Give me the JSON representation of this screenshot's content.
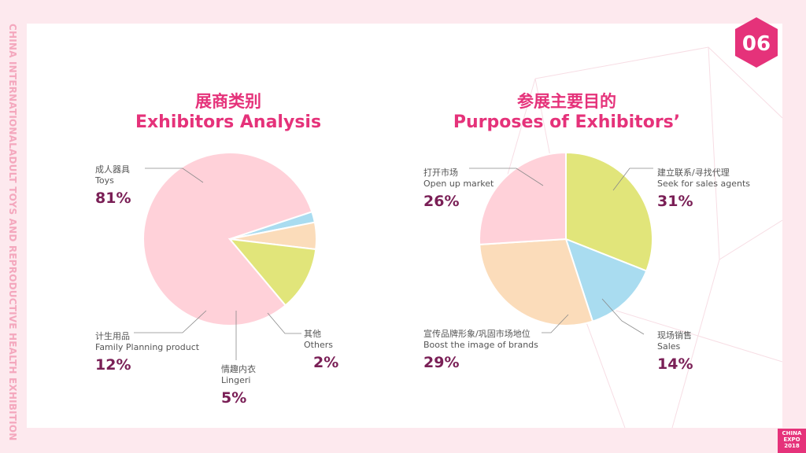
{
  "sidebar": {
    "text": "CHINA INTERNATIONALADULT TOYS AND REPRODUCTIVE HEALTH EXHIBITION"
  },
  "page_number": "06",
  "logo": {
    "line1": "CHINA",
    "line2": "EXPO",
    "line3": "2018"
  },
  "colors": {
    "accent": "#e5327a",
    "pct": "#7a1f56",
    "pink": "#ffd1d9",
    "green": "#e1e57a",
    "peach": "#fbdcba",
    "blue": "#a9dcf0"
  },
  "chart_data": [
    {
      "type": "pie",
      "title_cn": "展商类别",
      "title_en": "Exhibitors Analysis",
      "slices": [
        {
          "cn": "成人器具",
          "en": "Toys",
          "value": 81,
          "label": "81%",
          "color": "#ffd1d9"
        },
        {
          "cn": "其他",
          "en": "Others",
          "value": 2,
          "label": "2%",
          "color": "#a9dcf0"
        },
        {
          "cn": "情趣内衣",
          "en": "Lingeri",
          "value": 5,
          "label": "5%",
          "color": "#fbdcba"
        },
        {
          "cn": "计生用品",
          "en": "Family Planning product",
          "value": 12,
          "label": "12%",
          "color": "#e1e57a"
        }
      ]
    },
    {
      "type": "pie",
      "title_cn": "参展主要目的",
      "title_en": "Purposes of Exhibitors’",
      "slices": [
        {
          "cn": "建立联系/寻找代理",
          "en": "Seek for sales agents",
          "value": 31,
          "label": "31%",
          "color": "#e1e57a"
        },
        {
          "cn": "现场销售",
          "en": "Sales",
          "value": 14,
          "label": "14%",
          "color": "#a9dcf0"
        },
        {
          "cn": "宣传品牌形象/巩固市场地位",
          "en": "Boost the image of brands",
          "value": 29,
          "label": "29%",
          "color": "#fbdcba"
        },
        {
          "cn": "打开市场",
          "en": "Open up market",
          "value": 26,
          "label": "26%",
          "color": "#ffd1d9"
        }
      ]
    }
  ]
}
